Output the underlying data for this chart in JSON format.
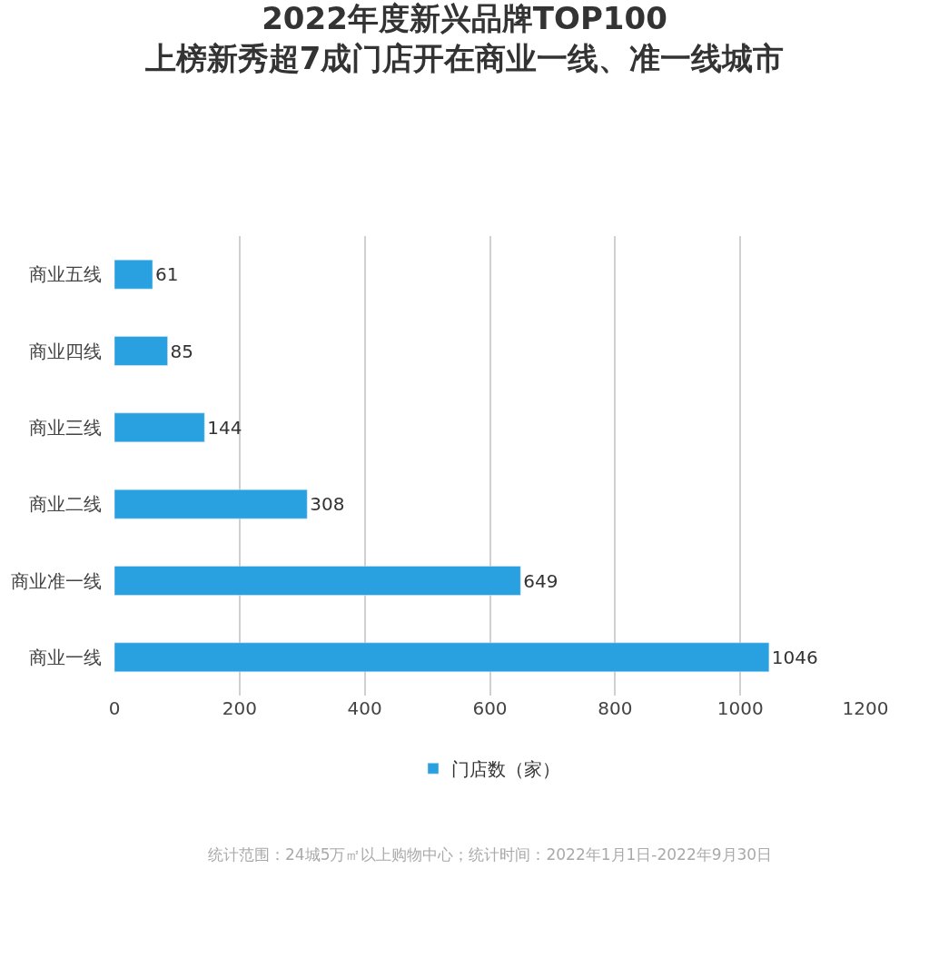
{
  "chart_data": {
    "type": "bar",
    "orientation": "horizontal",
    "title": "2022年度新兴品牌TOP100",
    "subtitle": "上榜新秀超7成门店开在商业一线、准一线城市",
    "categories": [
      "商业五线",
      "商业四线",
      "商业三线",
      "商业二线",
      "商业准一线",
      "商业一线"
    ],
    "series": [
      {
        "name": "门店数（家）",
        "color": "#29a0e0",
        "values": [
          61,
          85,
          144,
          308,
          649,
          1046
        ]
      }
    ],
    "xlim": [
      0,
      1200
    ],
    "xticks": [
      0,
      200,
      400,
      600,
      800,
      1000,
      1200
    ],
    "grid": "x",
    "legend": "bottom",
    "data_labels": true,
    "annotations": [
      "统计范围：24城5万㎡以上购物中心；统计时间：2022年1月1日-2022年9月30日"
    ]
  }
}
